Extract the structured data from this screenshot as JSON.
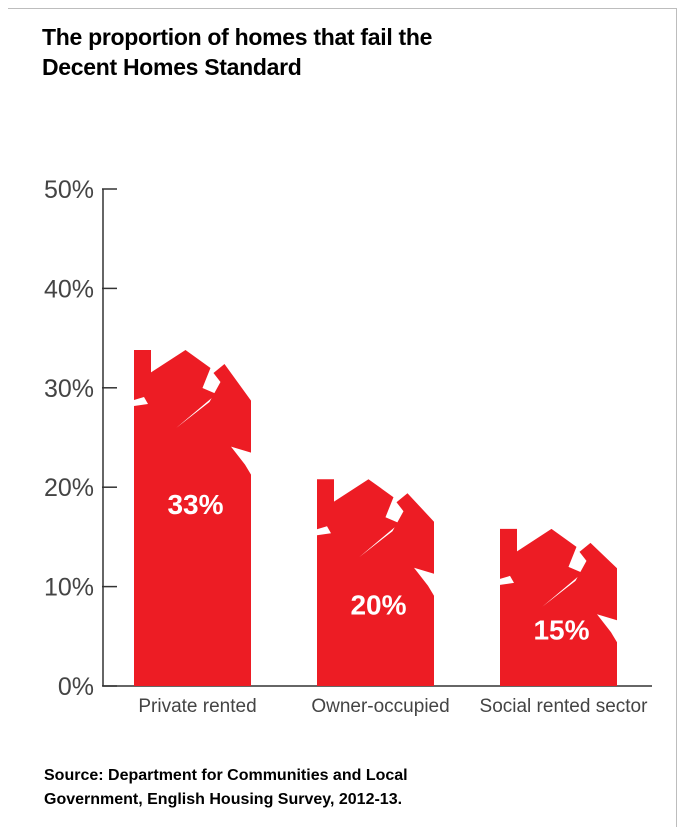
{
  "title_lines": [
    "The proportion of homes that fail the",
    "Decent Homes Standard"
  ],
  "source_lines": [
    "Source: Department for Communities and Local",
    "Government, English Housing Survey, 2012-13."
  ],
  "colors": {
    "bar": "#ed1c24",
    "axis": "#333333",
    "tick_label": "#444444",
    "data_label": "#ffffff"
  },
  "chart_data": {
    "type": "bar",
    "title": "The proportion of homes that fail the Decent Homes Standard",
    "categories": [
      "Private rented",
      "Owner-occupied",
      "Social rented sector"
    ],
    "values": [
      33,
      20,
      15
    ],
    "data_labels": [
      "33%",
      "20%",
      "15%"
    ],
    "y_ticks": [
      "0%",
      "10%",
      "20%",
      "30%",
      "40%",
      "50%"
    ],
    "ylim": [
      0,
      50
    ],
    "xlabel": "",
    "ylabel": "",
    "grid": false,
    "bar_style": "house-shaped with crack"
  }
}
